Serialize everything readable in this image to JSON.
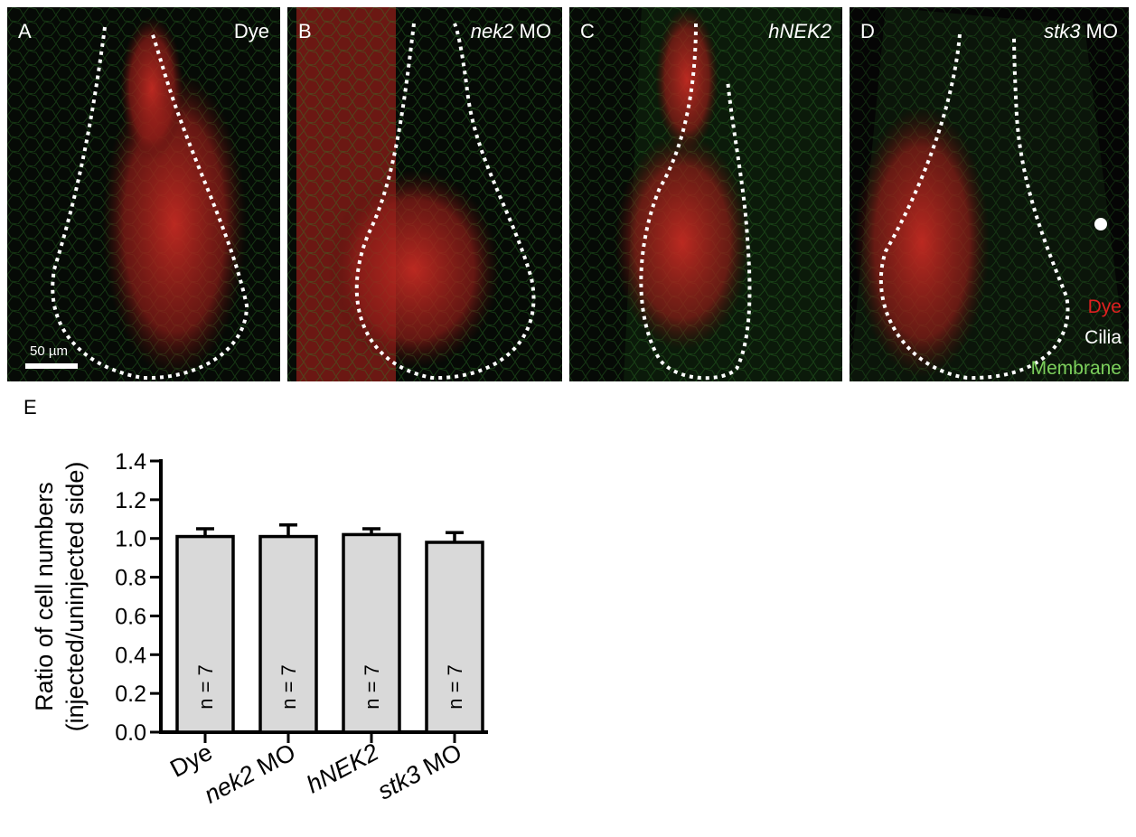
{
  "panels": [
    {
      "letter": "A",
      "title_pre": "",
      "title_it": "",
      "title_post": "Dye"
    },
    {
      "letter": "B",
      "title_pre": "",
      "title_it": "nek2",
      "title_post": " MO"
    },
    {
      "letter": "C",
      "title_pre": "",
      "title_it": "hNEK2",
      "title_post": ""
    },
    {
      "letter": "D",
      "title_pre": "",
      "title_it": "stk3",
      "title_post": " MO"
    }
  ],
  "scalebar_label": "50 µm",
  "legend": {
    "dye": "Dye",
    "cilia": "Cilia",
    "membrane": "Membrane"
  },
  "colors": {
    "dye": "#e02020",
    "cilia": "#ffffff",
    "membrane": "#7ccf5c",
    "bar_fill": "#d9d9d9"
  },
  "panel_e_letter": "E",
  "chart_data": {
    "type": "bar",
    "categories": [
      "Dye",
      "nek2 MO",
      "hNEK2",
      "stk3 MO"
    ],
    "category_parts": [
      {
        "it": "",
        "rest": "Dye"
      },
      {
        "it": "nek2",
        "rest": " MO"
      },
      {
        "it": "hNEK2",
        "rest": ""
      },
      {
        "it": "stk3",
        "rest": " MO"
      }
    ],
    "values": [
      1.01,
      1.01,
      1.02,
      0.98
    ],
    "errors": [
      0.04,
      0.06,
      0.03,
      0.05
    ],
    "n_labels": [
      "n = 7",
      "n = 7",
      "n = 7",
      "n = 7"
    ],
    "ylabel_line1": "Ratio of cell numbers",
    "ylabel_line2": "(injected/uninjected side)",
    "ylim": [
      0.0,
      1.4
    ],
    "yticks": [
      "0.0",
      "0.2",
      "0.4",
      "0.6",
      "0.8",
      "1.0",
      "1.2",
      "1.4"
    ]
  }
}
